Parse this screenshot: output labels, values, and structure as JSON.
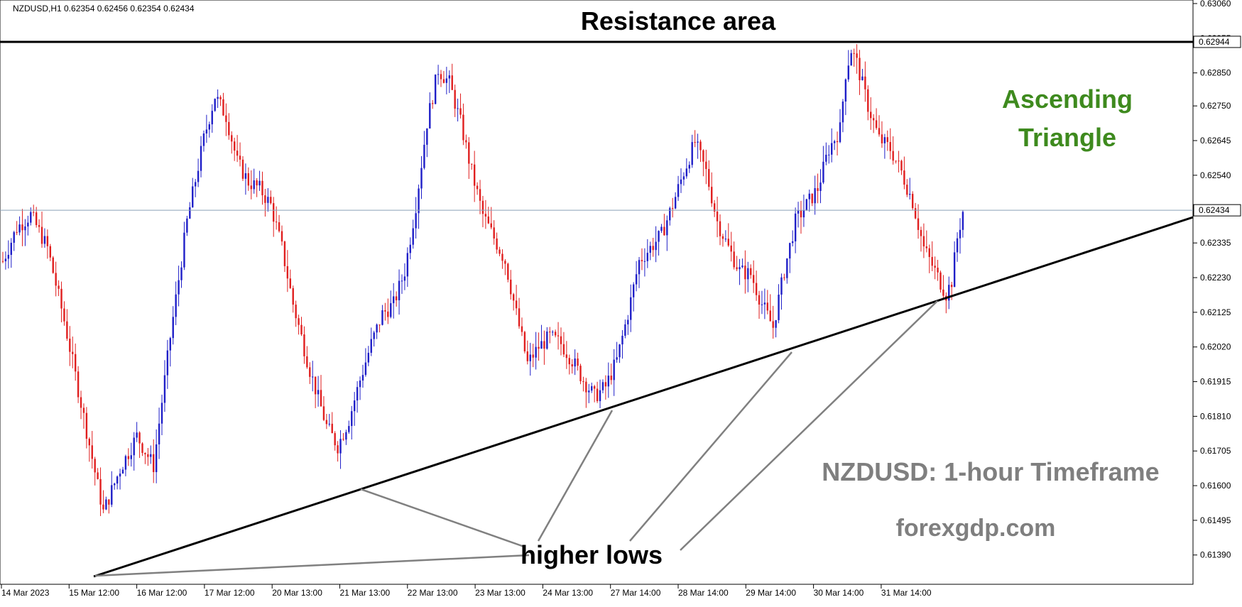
{
  "chart_data": {
    "type": "candlestick",
    "symbol_header": "NZDUSD,H1  0.62354 0.62456 0.62354 0.62434",
    "title": "Resistance area",
    "pattern_label_line1": "Ascending",
    "pattern_label_line2": "Triangle",
    "timeframe_label": "NZDUSD: 1-hour Timeframe",
    "watermark": "forexgdp.com",
    "annotation": "higher lows",
    "current_price": 0.62434,
    "resistance_price": 0.62944,
    "ylim": [
      0.6134,
      0.6306
    ],
    "y_ticks": [
      "0.63060",
      "0.62955",
      "0.62850",
      "0.62750",
      "0.62645",
      "0.62540",
      "0.62435",
      "0.62335",
      "0.62230",
      "0.62125",
      "0.62020",
      "0.61915",
      "0.61810",
      "0.61705",
      "0.61600",
      "0.61495",
      "0.61390"
    ],
    "x_ticks": [
      "14 Mar 2023",
      "15 Mar 12:00",
      "16 Mar 12:00",
      "17 Mar 12:00",
      "20 Mar 13:00",
      "21 Mar 13:00",
      "22 Mar 13:00",
      "23 Mar 13:00",
      "24 Mar 13:00",
      "27 Mar 14:00",
      "28 Mar 14:00",
      "29 Mar 14:00",
      "30 Mar 14:00",
      "31 Mar 14:00"
    ],
    "price_path_anchors": [
      [
        0,
        0.6228
      ],
      [
        5,
        0.6238
      ],
      [
        10,
        0.6242
      ],
      [
        16,
        0.6232
      ],
      [
        22,
        0.621
      ],
      [
        28,
        0.6185
      ],
      [
        34,
        0.616
      ],
      [
        36,
        0.6152
      ],
      [
        42,
        0.6165
      ],
      [
        48,
        0.6175
      ],
      [
        54,
        0.6166
      ],
      [
        60,
        0.6205
      ],
      [
        66,
        0.624
      ],
      [
        72,
        0.6265
      ],
      [
        76,
        0.6278
      ],
      [
        80,
        0.6272
      ],
      [
        84,
        0.6258
      ],
      [
        88,
        0.6252
      ],
      [
        92,
        0.625
      ],
      [
        96,
        0.6245
      ],
      [
        100,
        0.6232
      ],
      [
        104,
        0.6215
      ],
      [
        110,
        0.6195
      ],
      [
        116,
        0.6178
      ],
      [
        120,
        0.6172
      ],
      [
        124,
        0.618
      ],
      [
        128,
        0.6192
      ],
      [
        132,
        0.6203
      ],
      [
        136,
        0.6212
      ],
      [
        140,
        0.6215
      ],
      [
        144,
        0.6225
      ],
      [
        148,
        0.6245
      ],
      [
        152,
        0.627
      ],
      [
        156,
        0.6286
      ],
      [
        160,
        0.6282
      ],
      [
        164,
        0.627
      ],
      [
        168,
        0.6255
      ],
      [
        172,
        0.6242
      ],
      [
        176,
        0.6235
      ],
      [
        180,
        0.6228
      ],
      [
        184,
        0.6212
      ],
      [
        188,
        0.6197
      ],
      [
        192,
        0.6202
      ],
      [
        196,
        0.6205
      ],
      [
        200,
        0.6203
      ],
      [
        204,
        0.6198
      ],
      [
        208,
        0.6192
      ],
      [
        212,
        0.6187
      ],
      [
        216,
        0.619
      ],
      [
        220,
        0.6198
      ],
      [
        224,
        0.6212
      ],
      [
        228,
        0.6228
      ],
      [
        232,
        0.6232
      ],
      [
        236,
        0.6236
      ],
      [
        240,
        0.6245
      ],
      [
        244,
        0.6255
      ],
      [
        248,
        0.6264
      ],
      [
        252,
        0.6255
      ],
      [
        256,
        0.624
      ],
      [
        260,
        0.6232
      ],
      [
        264,
        0.6225
      ],
      [
        268,
        0.6224
      ],
      [
        272,
        0.6215
      ],
      [
        276,
        0.6208
      ],
      [
        280,
        0.6225
      ],
      [
        284,
        0.624
      ],
      [
        288,
        0.6245
      ],
      [
        292,
        0.625
      ],
      [
        296,
        0.6262
      ],
      [
        300,
        0.6268
      ],
      [
        302,
        0.6285
      ],
      [
        304,
        0.6292
      ],
      [
        306,
        0.6288
      ],
      [
        310,
        0.6275
      ],
      [
        314,
        0.6265
      ],
      [
        318,
        0.6262
      ],
      [
        322,
        0.6255
      ],
      [
        326,
        0.6246
      ],
      [
        330,
        0.6232
      ],
      [
        334,
        0.6225
      ],
      [
        338,
        0.6218
      ],
      [
        340,
        0.6222
      ],
      [
        342,
        0.6235
      ],
      [
        344,
        0.6243
      ]
    ]
  }
}
